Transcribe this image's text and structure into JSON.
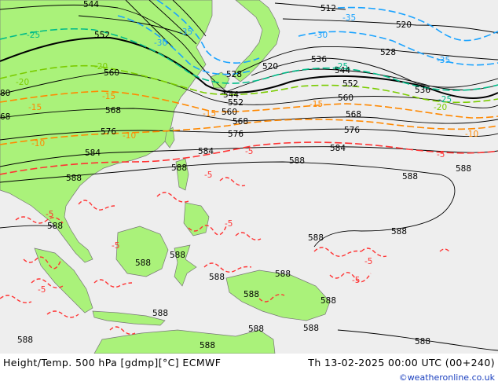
{
  "footer": {
    "title": "Height/Temp. 500 hPa [gdmp][°C] ECMWF",
    "valid_time": "Th 13-02-2025 00:00 UTC (00+240)",
    "credit": "©weatheronline.co.uk"
  },
  "colors": {
    "ocean": "#eeeeee",
    "land": "#aaf27a",
    "height_contour": "#000000",
    "temp_warm": "#ff3333",
    "temp_mid": "#ff8800",
    "temp_green": "#7acc00",
    "temp_teal": "#00bb88",
    "temp_cold": "#1aa3ff"
  },
  "height_labels": [
    {
      "text": "544"
    },
    {
      "text": "552"
    },
    {
      "text": "560"
    },
    {
      "text": "568"
    },
    {
      "text": "576"
    },
    {
      "text": "584"
    },
    {
      "text": "588"
    },
    {
      "text": "588"
    },
    {
      "text": "588"
    },
    {
      "text": "588"
    },
    {
      "text": "512"
    },
    {
      "text": "520"
    },
    {
      "text": "528"
    },
    {
      "text": "536"
    },
    {
      "text": "544"
    },
    {
      "text": "552"
    },
    {
      "text": "560"
    },
    {
      "text": "568"
    },
    {
      "text": "576"
    },
    {
      "text": "584"
    },
    {
      "text": "588"
    },
    {
      "text": "588"
    },
    {
      "text": "588"
    },
    {
      "text": "588"
    },
    {
      "text": "588"
    },
    {
      "text": "588"
    },
    {
      "text": "588"
    },
    {
      "text": "588"
    },
    {
      "text": "588"
    },
    {
      "text": "588"
    },
    {
      "text": "588"
    },
    {
      "text": "588"
    },
    {
      "text": "588"
    },
    {
      "text": "588"
    },
    {
      "text": "588"
    },
    {
      "text": "80"
    },
    {
      "text": "68"
    },
    {
      "text": "528"
    },
    {
      "text": "520"
    },
    {
      "text": "536"
    },
    {
      "text": "544"
    },
    {
      "text": "552"
    },
    {
      "text": "560"
    },
    {
      "text": "568"
    },
    {
      "text": "576"
    },
    {
      "text": "584"
    },
    {
      "text": "588"
    }
  ],
  "temp_labels": [
    {
      "text": "-25",
      "color": "temp_teal"
    },
    {
      "text": "-30",
      "color": "temp_cold"
    },
    {
      "text": "-35",
      "color": "temp_cold"
    },
    {
      "text": "-35",
      "color": "temp_cold"
    },
    {
      "text": "-30",
      "color": "temp_cold"
    },
    {
      "text": "-35",
      "color": "temp_cold"
    },
    {
      "text": "-25",
      "color": "temp_teal"
    },
    {
      "text": "-20",
      "color": "temp_green"
    },
    {
      "text": "-20",
      "color": "temp_green"
    },
    {
      "text": "-15",
      "color": "temp_mid"
    },
    {
      "text": "-15",
      "color": "temp_mid"
    },
    {
      "text": "-15",
      "color": "temp_mid"
    },
    {
      "text": "-15",
      "color": "temp_mid"
    },
    {
      "text": "-10",
      "color": "temp_mid"
    },
    {
      "text": "-10",
      "color": "temp_mid"
    },
    {
      "text": "-10",
      "color": "temp_mid"
    },
    {
      "text": "-5",
      "color": "temp_warm"
    },
    {
      "text": "-5",
      "color": "temp_warm"
    },
    {
      "text": "-5",
      "color": "temp_warm"
    },
    {
      "text": "-5",
      "color": "temp_warm"
    },
    {
      "text": "-5",
      "color": "temp_warm"
    },
    {
      "text": "-5",
      "color": "temp_warm"
    },
    {
      "text": "-5",
      "color": "temp_warm"
    },
    {
      "text": "-5",
      "color": "temp_warm"
    },
    {
      "text": "-5",
      "color": "temp_warm"
    },
    {
      "text": "-25",
      "color": "temp_teal"
    },
    {
      "text": "-20",
      "color": "temp_green"
    }
  ]
}
